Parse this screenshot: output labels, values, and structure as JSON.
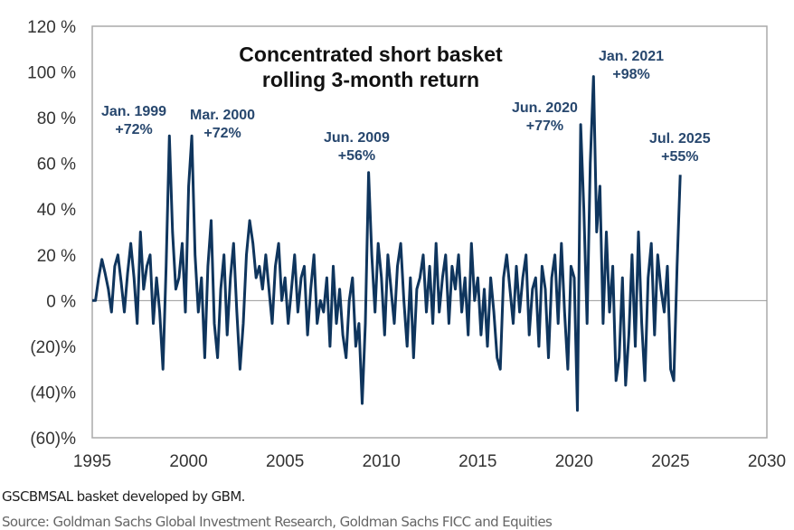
{
  "chart_data": {
    "type": "line",
    "title": "Concentrated short basket rolling 3-month return",
    "title_lines": [
      "Concentrated short basket",
      "rolling 3-month return"
    ],
    "xlabel": "",
    "ylabel": "",
    "xlim": [
      1995,
      2030
    ],
    "ylim": [
      -60,
      120
    ],
    "x_ticks": [
      1995,
      2000,
      2005,
      2010,
      2015,
      2020,
      2025,
      2030
    ],
    "x_tick_labels": [
      "1995",
      "2000",
      "2005",
      "2010",
      "2015",
      "2020",
      "2025",
      "2030"
    ],
    "y_ticks": [
      120,
      100,
      80,
      60,
      40,
      20,
      0,
      -20,
      -40,
      -60
    ],
    "y_tick_labels": [
      "120 %",
      "100 %",
      "80 %",
      "60 %",
      "40 %",
      "20 %",
      "0 %",
      "(20)%",
      "(40)%",
      "(60)%"
    ],
    "grid": "zero-line only",
    "series": [
      {
        "name": "Concentrated short basket rolling 3-month return (%)",
        "color": "#0f355d",
        "x_start": 1995,
        "x_step": 0.1667,
        "values": [
          0,
          0,
          10,
          18,
          12,
          5,
          -5,
          15,
          20,
          8,
          -5,
          12,
          25,
          10,
          -10,
          30,
          5,
          15,
          20,
          -10,
          10,
          -5,
          -30,
          15,
          72,
          30,
          5,
          10,
          25,
          -5,
          50,
          72,
          20,
          -5,
          10,
          -25,
          15,
          35,
          -10,
          -25,
          5,
          20,
          -15,
          10,
          25,
          -5,
          -30,
          -10,
          20,
          35,
          25,
          10,
          15,
          5,
          20,
          5,
          -10,
          15,
          25,
          0,
          10,
          -10,
          5,
          20,
          -5,
          10,
          15,
          -15,
          5,
          20,
          -10,
          0,
          -5,
          10,
          -20,
          15,
          -10,
          5,
          -15,
          -25,
          0,
          10,
          -20,
          -10,
          -45,
          -10,
          56,
          20,
          -5,
          25,
          10,
          -15,
          20,
          5,
          -10,
          15,
          25,
          0,
          -20,
          10,
          -25,
          5,
          10,
          20,
          -5,
          15,
          -10,
          25,
          -5,
          10,
          20,
          -10,
          15,
          5,
          20,
          -5,
          10,
          -15,
          25,
          0,
          10,
          -15,
          5,
          -20,
          10,
          -5,
          -25,
          -30,
          10,
          20,
          5,
          -10,
          15,
          -5,
          10,
          20,
          -15,
          5,
          10,
          -20,
          15,
          5,
          -25,
          10,
          20,
          -10,
          25,
          -5,
          -30,
          15,
          10,
          -48,
          77,
          40,
          -10,
          60,
          98,
          30,
          50,
          -10,
          30,
          -5,
          15,
          -35,
          -25,
          10,
          -37,
          -15,
          20,
          -20,
          30,
          -10,
          -35,
          10,
          25,
          -15,
          20,
          5,
          -5,
          15,
          -30,
          -35,
          15,
          55
        ]
      }
    ],
    "annotations": [
      {
        "label": "Jan. 1999",
        "value": "+72%"
      },
      {
        "label": "Mar. 2000",
        "value": "+72%"
      },
      {
        "label": "Jun. 2009",
        "value": "+56%"
      },
      {
        "label": "Jun. 2020",
        "value": "+77%"
      },
      {
        "label": "Jan. 2021",
        "value": "+98%"
      },
      {
        "label": "Jul. 2025",
        "value": "+55%"
      }
    ]
  },
  "footnotes": {
    "basket": "GSCBMSAL basket developed by GBM.",
    "source": "Source: Goldman Sachs Global Investment Research, Goldman Sachs FICC and Equities"
  }
}
